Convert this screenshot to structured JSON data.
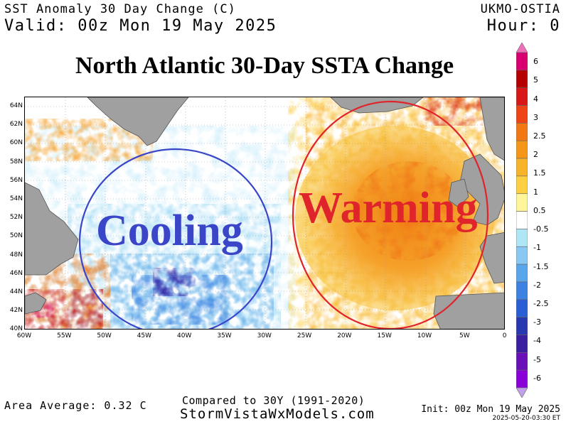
{
  "header": {
    "product": "SST Anomaly 30 Day Change (C)",
    "valid": "Valid: 00z Mon 19 May 2025",
    "source": "UKMO-OSTIA",
    "hour": "Hour: 0"
  },
  "map": {
    "title": "North Atlantic 30-Day SSTA Change",
    "lat_labels": [
      "64N",
      "62N",
      "60N",
      "58N",
      "56N",
      "54N",
      "52N",
      "50N",
      "48N",
      "46N",
      "44N",
      "42N",
      "40N"
    ],
    "lon_labels": [
      "60W",
      "55W",
      "50W",
      "45W",
      "40W",
      "35W",
      "30W",
      "25W",
      "20W",
      "15W",
      "10W",
      "5W",
      "0"
    ],
    "annotations": {
      "cooling": {
        "label": "Cooling",
        "color": "#3a45c8"
      },
      "warming": {
        "label": "Warming",
        "color": "#e0242c"
      }
    }
  },
  "legend": {
    "labels": [
      "6",
      "5",
      "4",
      "3",
      "2.5",
      "2",
      "1.5",
      "1",
      "0.5",
      "-0.5",
      "-1",
      "-1.5",
      "-2",
      "-2.5",
      "-3",
      "-4",
      "-5",
      "-6"
    ],
    "colors": [
      "#f070b8",
      "#d80070",
      "#b40000",
      "#d81818",
      "#ee4418",
      "#f27814",
      "#f59618",
      "#f8b428",
      "#fcd040",
      "#fff59a",
      "#ffffff",
      "#aee6f6",
      "#88c8f2",
      "#5aa6ea",
      "#3c82e2",
      "#2a5ed4",
      "#2838b0",
      "#3a20a0",
      "#6a10b8",
      "#8a00d8",
      "#c0a0e8"
    ]
  },
  "footer": {
    "area_average": "Area Average: 0.32 C",
    "compared_to": "Compared to 30Y (1991-2020)",
    "site": "StormVistaWxModels.com",
    "init": "Init: 00z Mon 19 May 2025",
    "timestamp": "2025-05-20-03:30 ET"
  }
}
